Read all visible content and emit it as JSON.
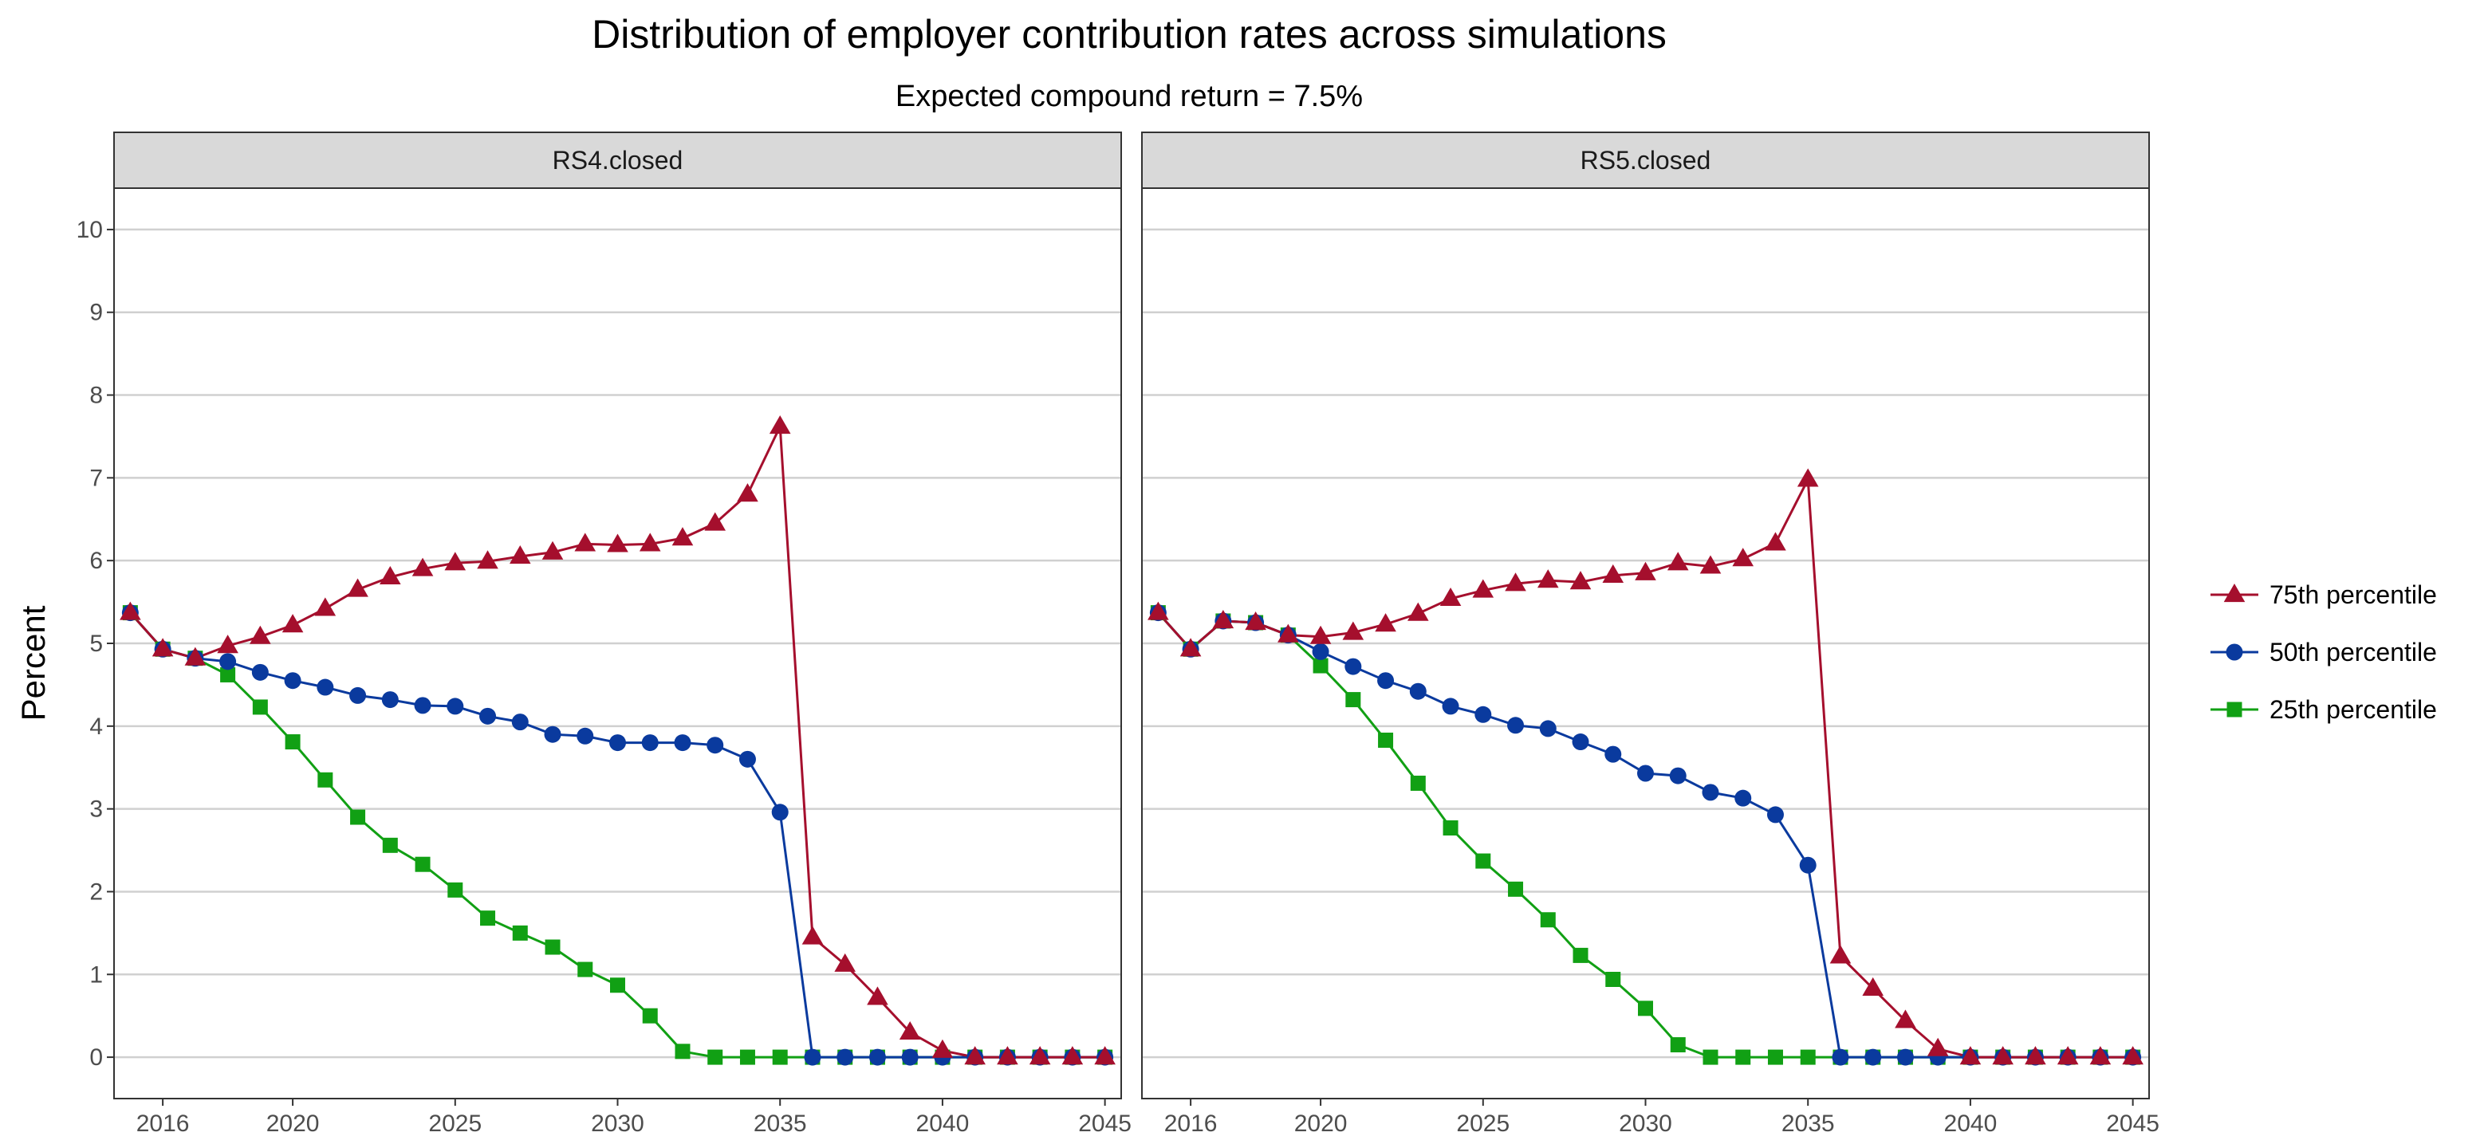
{
  "chart_data": {
    "type": "line",
    "title": "Distribution of employer contribution rates across simulations",
    "subtitle": "Expected compound return = 7.5%",
    "ylabel": "Percent",
    "xlabel": "",
    "xlim": [
      2014.5,
      2045.5
    ],
    "ylim": [
      -0.5,
      10.5
    ],
    "x_ticks": [
      2016,
      2020,
      2025,
      2030,
      2035,
      2040,
      2045
    ],
    "y_ticks": [
      0,
      1,
      2,
      3,
      4,
      5,
      6,
      7,
      8,
      9,
      10
    ],
    "grid": "horizontal",
    "legend_position": "right",
    "legend": [
      {
        "label": "75th percentile",
        "color": "#A50F2D",
        "marker": "triangle"
      },
      {
        "label": "50th percentile",
        "color": "#0A3A9E",
        "marker": "circle"
      },
      {
        "label": "25th percentile",
        "color": "#11A014",
        "marker": "square"
      }
    ],
    "x": [
      2015,
      2016,
      2017,
      2018,
      2019,
      2020,
      2021,
      2022,
      2023,
      2024,
      2025,
      2026,
      2027,
      2028,
      2029,
      2030,
      2031,
      2032,
      2033,
      2034,
      2035,
      2036,
      2037,
      2038,
      2039,
      2040,
      2041,
      2042,
      2043,
      2044,
      2045
    ],
    "panels": [
      {
        "strip": "RS4.closed",
        "series": [
          {
            "name": "75th percentile",
            "values": [
              5.37,
              4.93,
              4.82,
              4.97,
              5.08,
              5.22,
              5.42,
              5.65,
              5.8,
              5.9,
              5.97,
              5.99,
              6.05,
              6.1,
              6.2,
              6.19,
              6.2,
              6.27,
              6.45,
              6.8,
              7.62,
              1.45,
              1.12,
              0.72,
              0.3,
              0.08,
              0,
              0,
              0,
              0,
              0
            ]
          },
          {
            "name": "50th percentile",
            "values": [
              5.37,
              4.93,
              4.82,
              4.78,
              4.65,
              4.55,
              4.47,
              4.37,
              4.32,
              4.25,
              4.24,
              4.12,
              4.05,
              3.9,
              3.88,
              3.8,
              3.8,
              3.8,
              3.77,
              3.6,
              2.96,
              0,
              0,
              0,
              0,
              0,
              0,
              0,
              0,
              0,
              0
            ]
          },
          {
            "name": "25th percentile",
            "values": [
              5.37,
              4.93,
              4.82,
              4.62,
              4.23,
              3.81,
              3.35,
              2.9,
              2.56,
              2.33,
              2.02,
              1.68,
              1.5,
              1.33,
              1.06,
              0.87,
              0.5,
              0.07,
              0,
              0,
              0,
              0,
              0,
              0,
              0,
              0,
              0,
              0,
              0,
              0,
              0
            ]
          }
        ]
      },
      {
        "strip": "RS5.closed",
        "series": [
          {
            "name": "75th percentile",
            "values": [
              5.37,
              4.93,
              5.27,
              5.25,
              5.1,
              5.08,
              5.13,
              5.23,
              5.36,
              5.54,
              5.64,
              5.72,
              5.76,
              5.74,
              5.82,
              5.85,
              5.97,
              5.93,
              6.02,
              6.21,
              6.98,
              1.22,
              0.83,
              0.44,
              0.1,
              0,
              0,
              0,
              0,
              0,
              0
            ]
          },
          {
            "name": "50th percentile",
            "values": [
              5.37,
              4.93,
              5.27,
              5.25,
              5.1,
              4.9,
              4.72,
              4.55,
              4.42,
              4.24,
              4.14,
              4.01,
              3.97,
              3.81,
              3.66,
              3.43,
              3.4,
              3.2,
              3.13,
              2.93,
              2.32,
              0,
              0,
              0,
              0,
              0,
              0,
              0,
              0,
              0,
              0
            ]
          },
          {
            "name": "25th percentile",
            "values": [
              5.37,
              4.93,
              5.27,
              5.25,
              5.1,
              4.73,
              4.32,
              3.83,
              3.31,
              2.77,
              2.37,
              2.03,
              1.66,
              1.23,
              0.94,
              0.59,
              0.15,
              0,
              0,
              0,
              0,
              0,
              0,
              0,
              0,
              0,
              0,
              0,
              0,
              0,
              0
            ]
          }
        ]
      }
    ]
  }
}
